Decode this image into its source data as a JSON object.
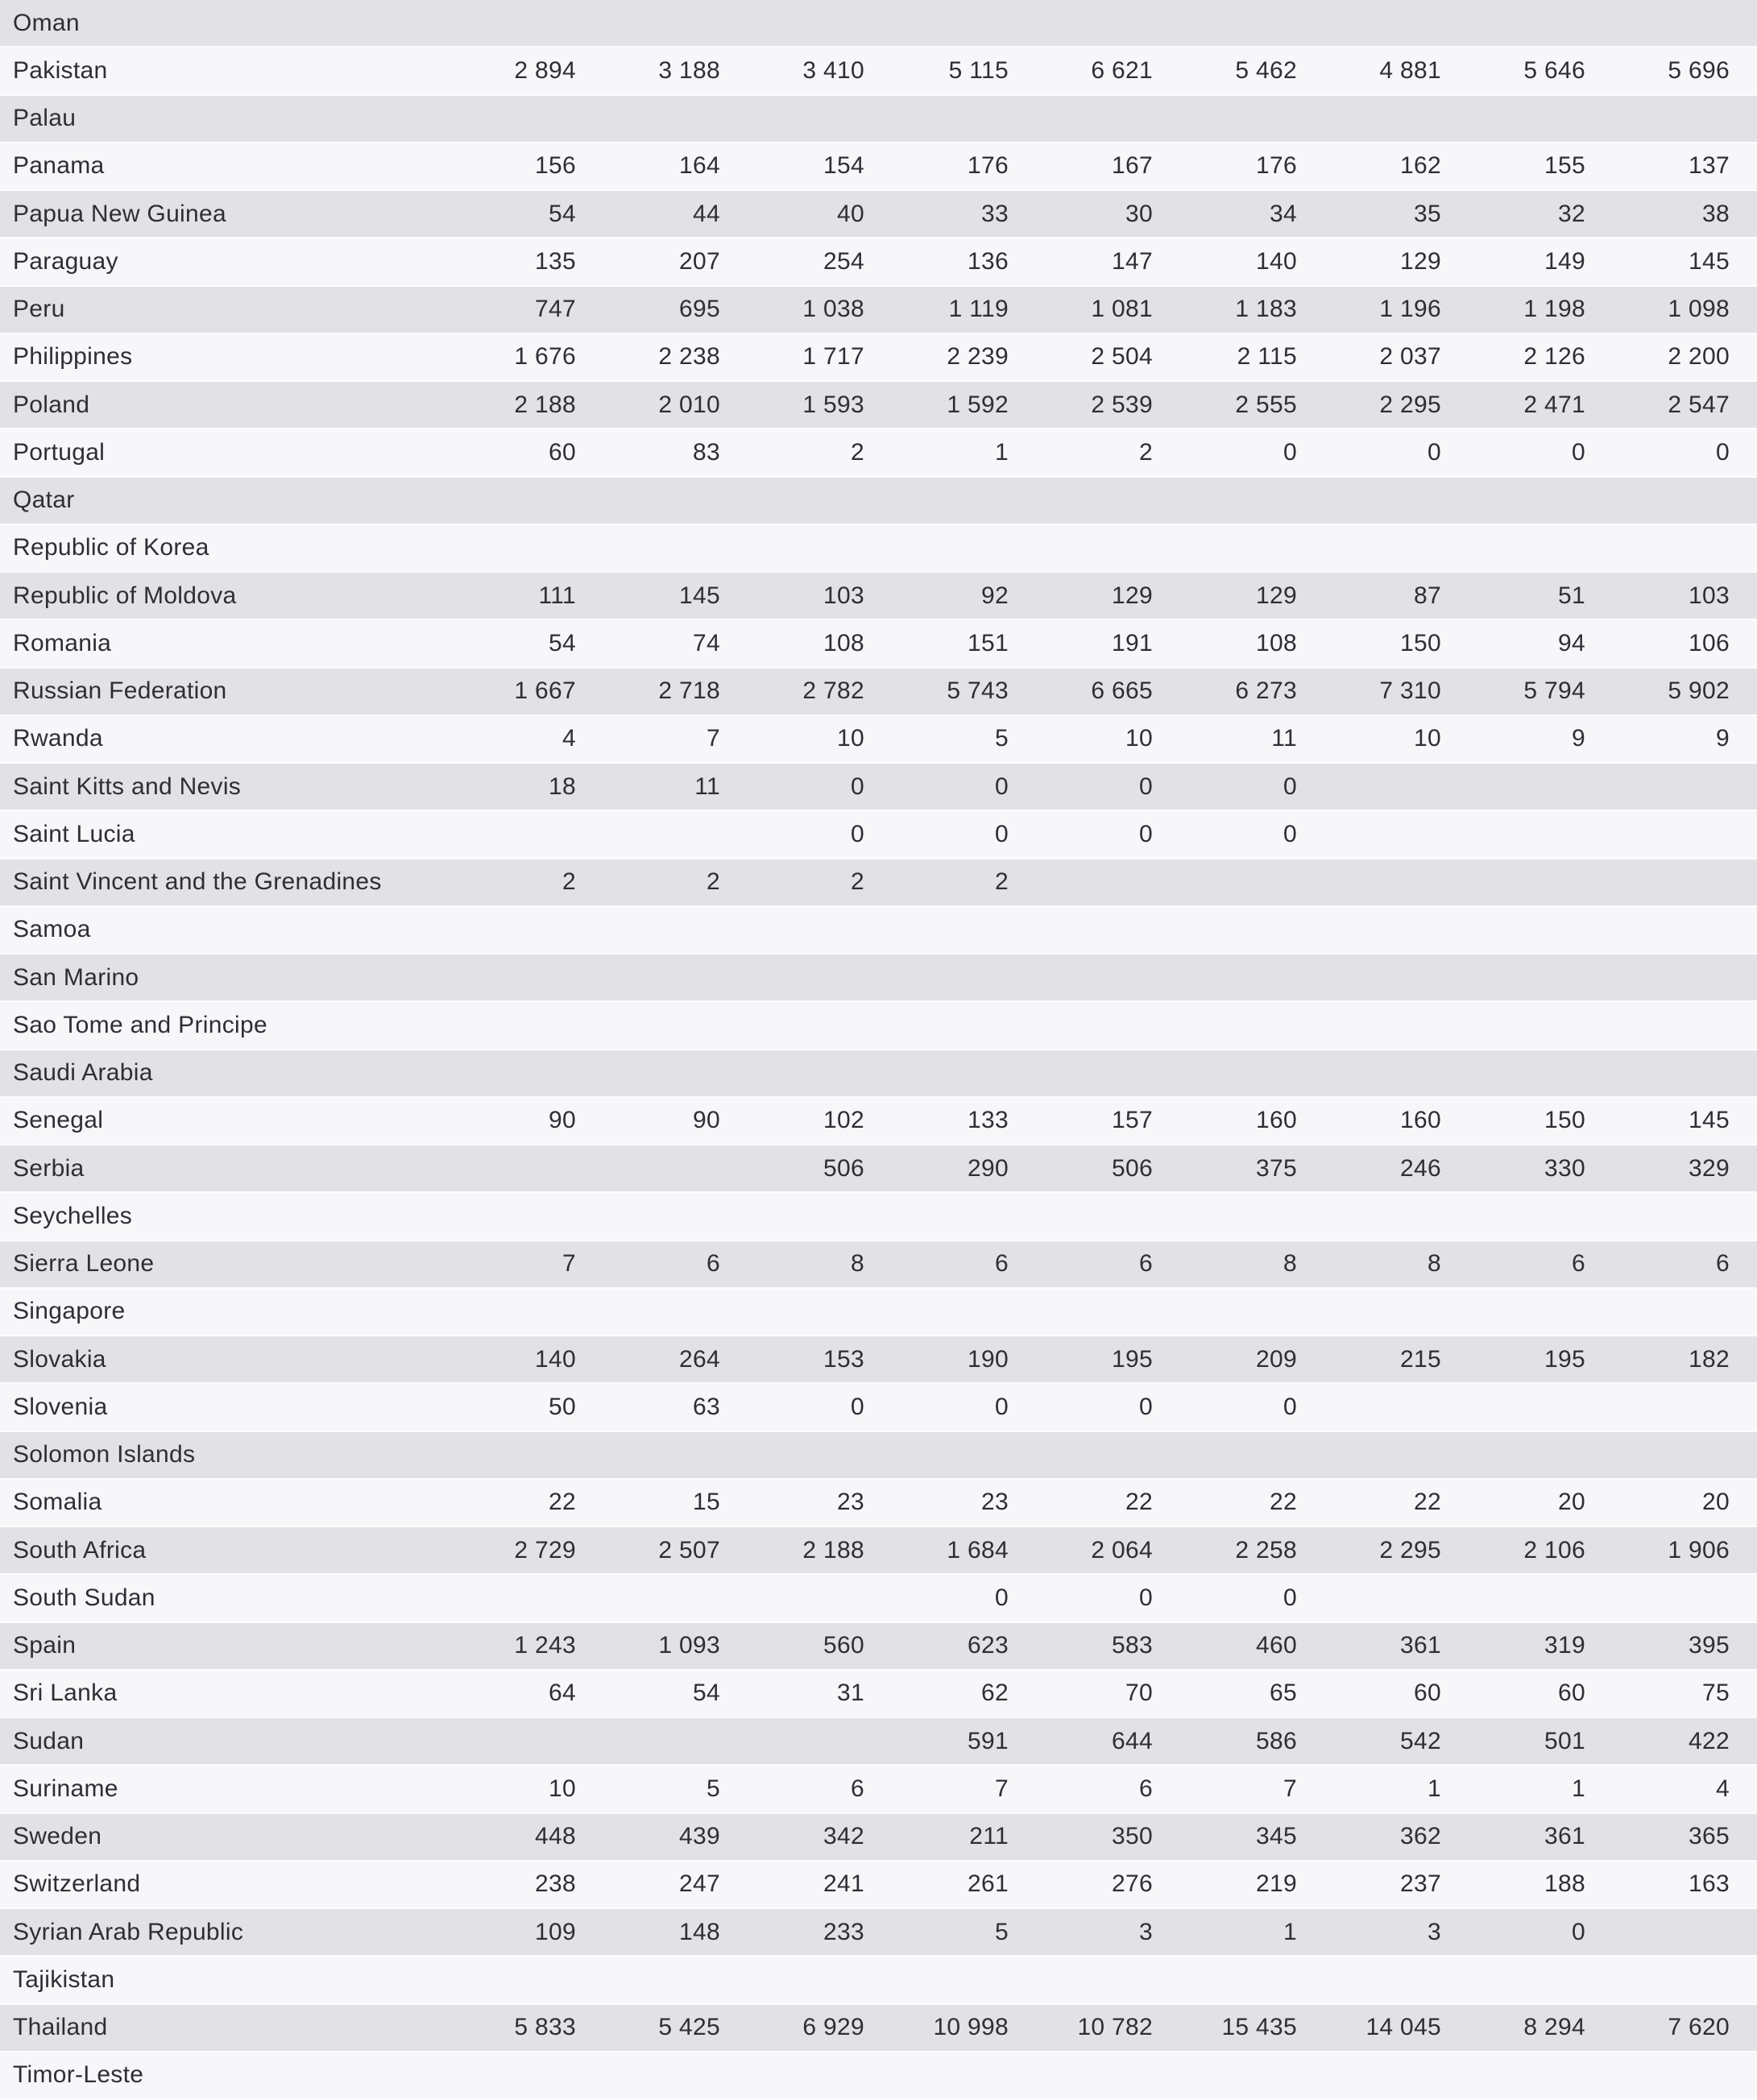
{
  "colors": {
    "row_shade_dark": "#e2e1e5",
    "row_shade_light": "#f7f6f8",
    "row_separator": "#fcfbfd",
    "text": "#2f2e33"
  },
  "table": {
    "value_column_count": 9,
    "rows": [
      {
        "name": "Oman",
        "values": [
          "",
          "",
          "",
          "",
          "",
          "",
          "",
          "",
          ""
        ]
      },
      {
        "name": "Pakistan",
        "values": [
          "2 894",
          "3 188",
          "3 410",
          "5 115",
          "6 621",
          "5 462",
          "4 881",
          "5 646",
          "5 696"
        ]
      },
      {
        "name": "Palau",
        "values": [
          "",
          "",
          "",
          "",
          "",
          "",
          "",
          "",
          ""
        ]
      },
      {
        "name": "Panama",
        "values": [
          "156",
          "164",
          "154",
          "176",
          "167",
          "176",
          "162",
          "155",
          "137"
        ]
      },
      {
        "name": "Papua New Guinea",
        "values": [
          "54",
          "44",
          "40",
          "33",
          "30",
          "34",
          "35",
          "32",
          "38"
        ]
      },
      {
        "name": "Paraguay",
        "values": [
          "135",
          "207",
          "254",
          "136",
          "147",
          "140",
          "129",
          "149",
          "145"
        ]
      },
      {
        "name": "Peru",
        "values": [
          "747",
          "695",
          "1 038",
          "1 119",
          "1 081",
          "1 183",
          "1 196",
          "1 198",
          "1 098"
        ]
      },
      {
        "name": "Philippines",
        "values": [
          "1 676",
          "2 238",
          "1 717",
          "2 239",
          "2 504",
          "2 115",
          "2 037",
          "2 126",
          "2 200"
        ]
      },
      {
        "name": "Poland",
        "values": [
          "2 188",
          "2 010",
          "1 593",
          "1 592",
          "2 539",
          "2 555",
          "2 295",
          "2 471",
          "2 547"
        ]
      },
      {
        "name": "Portugal",
        "values": [
          "60",
          "83",
          "2",
          "1",
          "2",
          "0",
          "0",
          "0",
          "0"
        ]
      },
      {
        "name": "Qatar",
        "values": [
          "",
          "",
          "",
          "",
          "",
          "",
          "",
          "",
          ""
        ]
      },
      {
        "name": "Republic of Korea",
        "values": [
          "",
          "",
          "",
          "",
          "",
          "",
          "",
          "",
          ""
        ]
      },
      {
        "name": "Republic of Moldova",
        "values": [
          "111",
          "145",
          "103",
          "92",
          "129",
          "129",
          "87",
          "51",
          "103"
        ]
      },
      {
        "name": "Romania",
        "values": [
          "54",
          "74",
          "108",
          "151",
          "191",
          "108",
          "150",
          "94",
          "106"
        ]
      },
      {
        "name": "Russian Federation",
        "values": [
          "1 667",
          "2 718",
          "2 782",
          "5 743",
          "6 665",
          "6 273",
          "7 310",
          "5 794",
          "5 902"
        ]
      },
      {
        "name": "Rwanda",
        "values": [
          "4",
          "7",
          "10",
          "5",
          "10",
          "11",
          "10",
          "9",
          "9"
        ]
      },
      {
        "name": "Saint Kitts and Nevis",
        "values": [
          "18",
          "11",
          "0",
          "0",
          "0",
          "0",
          "",
          "",
          ""
        ]
      },
      {
        "name": "Saint Lucia",
        "values": [
          "",
          "",
          "0",
          "0",
          "0",
          "0",
          "",
          "",
          ""
        ]
      },
      {
        "name": "Saint Vincent and the Grenadines",
        "values": [
          "2",
          "2",
          "2",
          "2",
          "",
          "",
          "",
          "",
          ""
        ]
      },
      {
        "name": "Samoa",
        "values": [
          "",
          "",
          "",
          "",
          "",
          "",
          "",
          "",
          ""
        ]
      },
      {
        "name": "San Marino",
        "values": [
          "",
          "",
          "",
          "",
          "",
          "",
          "",
          "",
          ""
        ]
      },
      {
        "name": "Sao Tome and Principe",
        "values": [
          "",
          "",
          "",
          "",
          "",
          "",
          "",
          "",
          ""
        ]
      },
      {
        "name": "Saudi Arabia",
        "values": [
          "",
          "",
          "",
          "",
          "",
          "",
          "",
          "",
          ""
        ]
      },
      {
        "name": "Senegal",
        "values": [
          "90",
          "90",
          "102",
          "133",
          "157",
          "160",
          "160",
          "150",
          "145"
        ]
      },
      {
        "name": "Serbia",
        "values": [
          "",
          "",
          "506",
          "290",
          "506",
          "375",
          "246",
          "330",
          "329"
        ]
      },
      {
        "name": "Seychelles",
        "values": [
          "",
          "",
          "",
          "",
          "",
          "",
          "",
          "",
          ""
        ]
      },
      {
        "name": "Sierra Leone",
        "values": [
          "7",
          "6",
          "8",
          "6",
          "6",
          "8",
          "8",
          "6",
          "6"
        ]
      },
      {
        "name": "Singapore",
        "values": [
          "",
          "",
          "",
          "",
          "",
          "",
          "",
          "",
          ""
        ]
      },
      {
        "name": "Slovakia",
        "values": [
          "140",
          "264",
          "153",
          "190",
          "195",
          "209",
          "215",
          "195",
          "182"
        ]
      },
      {
        "name": "Slovenia",
        "values": [
          "50",
          "63",
          "0",
          "0",
          "0",
          "0",
          "",
          "",
          ""
        ]
      },
      {
        "name": "Solomon Islands",
        "values": [
          "",
          "",
          "",
          "",
          "",
          "",
          "",
          "",
          ""
        ]
      },
      {
        "name": "Somalia",
        "values": [
          "22",
          "15",
          "23",
          "23",
          "22",
          "22",
          "22",
          "20",
          "20"
        ]
      },
      {
        "name": "South Africa",
        "values": [
          "2 729",
          "2 507",
          "2 188",
          "1 684",
          "2 064",
          "2 258",
          "2 295",
          "2 106",
          "1 906"
        ]
      },
      {
        "name": "South Sudan",
        "values": [
          "",
          "",
          "",
          "0",
          "0",
          "0",
          "",
          "",
          ""
        ]
      },
      {
        "name": "Spain",
        "values": [
          "1 243",
          "1 093",
          "560",
          "623",
          "583",
          "460",
          "361",
          "319",
          "395"
        ]
      },
      {
        "name": "Sri Lanka",
        "values": [
          "64",
          "54",
          "31",
          "62",
          "70",
          "65",
          "60",
          "60",
          "75"
        ]
      },
      {
        "name": "Sudan",
        "values": [
          "",
          "",
          "",
          "591",
          "644",
          "586",
          "542",
          "501",
          "422"
        ]
      },
      {
        "name": "Suriname",
        "values": [
          "10",
          "5",
          "6",
          "7",
          "6",
          "7",
          "1",
          "1",
          "4"
        ]
      },
      {
        "name": "Sweden",
        "values": [
          "448",
          "439",
          "342",
          "211",
          "350",
          "345",
          "362",
          "361",
          "365"
        ]
      },
      {
        "name": "Switzerland",
        "values": [
          "238",
          "247",
          "241",
          "261",
          "276",
          "219",
          "237",
          "188",
          "163"
        ]
      },
      {
        "name": "Syrian Arab Republic",
        "values": [
          "109",
          "148",
          "233",
          "5",
          "3",
          "1",
          "3",
          "0",
          ""
        ]
      },
      {
        "name": "Tajikistan",
        "values": [
          "",
          "",
          "",
          "",
          "",
          "",
          "",
          "",
          ""
        ]
      },
      {
        "name": "Thailand",
        "values": [
          "5 833",
          "5 425",
          "6 929",
          "10 998",
          "10 782",
          "15 435",
          "14 045",
          "8 294",
          "7 620"
        ]
      },
      {
        "name": "Timor-Leste",
        "values": [
          "",
          "",
          "",
          "",
          "",
          "",
          "",
          "",
          ""
        ]
      }
    ]
  }
}
